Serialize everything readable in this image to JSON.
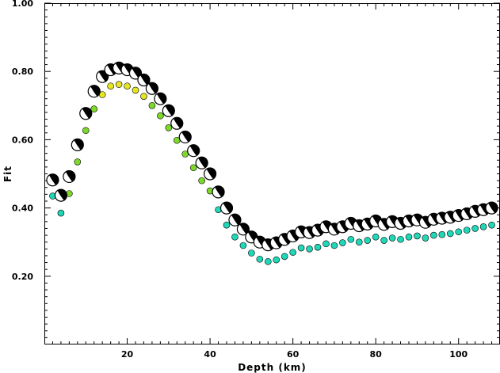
{
  "chart_data": {
    "type": "scatter",
    "title": "",
    "xlabel": "Depth (km)",
    "ylabel": "Fit",
    "xlim": [
      0,
      110
    ],
    "ylim": [
      0.0,
      1.0
    ],
    "xticks": [
      20,
      40,
      60,
      80,
      100
    ],
    "xtick_labels": [
      "20",
      "40",
      "60",
      "80",
      "100"
    ],
    "yticks": [
      0.2,
      0.4,
      0.6,
      0.8,
      1.0
    ],
    "ytick_labels": [
      "0.20",
      "0.40",
      "0.60",
      "0.80",
      "1.00"
    ],
    "grid": false,
    "legend": "none",
    "colors": {
      "low_fit": "#1fd8b8",
      "mid_fit": "#7ed82a",
      "high_fit": "#e6e61f",
      "beachball_dark": "#000000",
      "beachball_light": "#ffffff"
    },
    "series": [
      {
        "marker": "circle",
        "x": [
          2,
          4,
          6,
          8,
          10,
          12,
          14,
          16,
          18,
          20,
          22,
          24,
          26,
          28,
          30,
          32,
          34,
          36,
          38,
          40,
          42,
          44,
          46,
          48,
          50,
          52,
          54,
          56,
          58,
          60,
          62,
          64,
          66,
          68,
          70,
          72,
          74,
          76,
          78,
          80,
          82,
          84,
          86,
          88,
          90,
          92,
          94,
          96,
          98,
          100,
          102,
          104,
          106,
          108
        ],
        "y": [
          0.435,
          0.385,
          0.442,
          0.535,
          0.627,
          0.69,
          0.732,
          0.757,
          0.762,
          0.757,
          0.745,
          0.727,
          0.7,
          0.67,
          0.635,
          0.598,
          0.558,
          0.518,
          0.48,
          0.45,
          0.395,
          0.35,
          0.315,
          0.29,
          0.268,
          0.25,
          0.243,
          0.248,
          0.258,
          0.27,
          0.283,
          0.28,
          0.285,
          0.295,
          0.29,
          0.298,
          0.308,
          0.3,
          0.305,
          0.315,
          0.305,
          0.312,
          0.308,
          0.315,
          0.318,
          0.312,
          0.32,
          0.322,
          0.325,
          0.33,
          0.335,
          0.34,
          0.345,
          0.35
        ]
      },
      {
        "marker": "beachball",
        "x": [
          2,
          4,
          6,
          8,
          10,
          12,
          14,
          16,
          18,
          20,
          22,
          24,
          26,
          28,
          30,
          32,
          34,
          36,
          38,
          40,
          42,
          44,
          46,
          48,
          50,
          52,
          54,
          56,
          58,
          60,
          62,
          64,
          66,
          68,
          70,
          72,
          74,
          76,
          78,
          80,
          82,
          84,
          86,
          88,
          90,
          92,
          94,
          96,
          98,
          100,
          102,
          104,
          106,
          108
        ],
        "y": [
          0.482,
          0.437,
          0.492,
          0.585,
          0.677,
          0.742,
          0.785,
          0.805,
          0.81,
          0.805,
          0.795,
          0.775,
          0.75,
          0.72,
          0.685,
          0.648,
          0.608,
          0.568,
          0.532,
          0.5,
          0.447,
          0.4,
          0.365,
          0.338,
          0.315,
          0.3,
          0.292,
          0.298,
          0.308,
          0.318,
          0.33,
          0.328,
          0.335,
          0.345,
          0.338,
          0.345,
          0.355,
          0.348,
          0.353,
          0.362,
          0.352,
          0.36,
          0.355,
          0.362,
          0.365,
          0.358,
          0.367,
          0.37,
          0.373,
          0.378,
          0.383,
          0.39,
          0.395,
          0.4
        ]
      }
    ]
  }
}
